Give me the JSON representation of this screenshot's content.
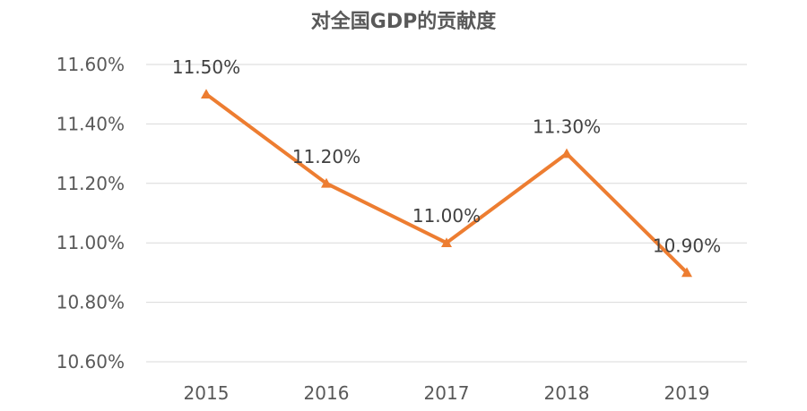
{
  "chart_data": {
    "type": "line",
    "title": "对全国GDP的贡献度",
    "categories": [
      "2015",
      "2016",
      "2017",
      "2018",
      "2019"
    ],
    "series": [
      {
        "values": [
          11.5,
          11.2,
          11.0,
          11.3,
          10.9
        ],
        "color": "#ED7D31",
        "marker": "triangle"
      }
    ],
    "data_labels": [
      "11.50%",
      "11.20%",
      "11.00%",
      "11.30%",
      "10.90%"
    ],
    "y_ticks": [
      10.6,
      10.8,
      11.0,
      11.2,
      11.4,
      11.6
    ],
    "y_tick_labels": [
      "10.60%",
      "10.80%",
      "11.00%",
      "11.20%",
      "11.40%",
      "11.60%"
    ],
    "ylim": [
      10.6,
      11.6
    ],
    "grid": true,
    "legend": "none",
    "xlabel": "",
    "ylabel": ""
  }
}
